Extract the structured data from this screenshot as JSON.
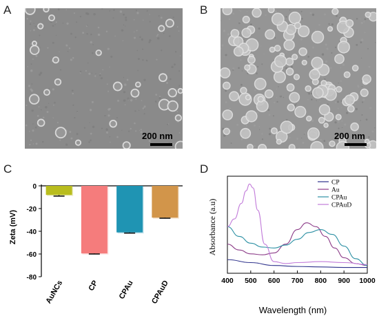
{
  "panels": {
    "A": {
      "letter": "A",
      "scale_label": "200 nm"
    },
    "B": {
      "letter": "B",
      "scale_label": "200 nm"
    },
    "C": {
      "letter": "C"
    },
    "D": {
      "letter": "D"
    }
  },
  "chart_data": [
    {
      "type": "bar",
      "panel": "C",
      "categories": [
        "AuNCs",
        "CP",
        "CPAu",
        "CPAuD"
      ],
      "values": [
        -8,
        -59.5,
        -41,
        -28
      ],
      "errors": [
        1,
        0.5,
        0.6,
        0.5
      ],
      "colors": [
        "#b9bd1e",
        "#f57c7c",
        "#1f94b3",
        "#d2954a"
      ],
      "xlabel": "",
      "ylabel": "Zeta (mV)",
      "ylim": [
        -80,
        0
      ],
      "yticks": [
        0,
        -20,
        -40,
        -60,
        -80
      ],
      "grid": false
    },
    {
      "type": "line",
      "panel": "D",
      "xlabel": "Wavelength (nm)",
      "ylabel": "Absorbance (a.u)",
      "xlim": [
        400,
        1000
      ],
      "xticks": [
        400,
        500,
        600,
        700,
        800,
        900,
        1000
      ],
      "legend": "top-right",
      "grid": false,
      "series": [
        {
          "name": "CP",
          "color": "#2b2f8a",
          "x": [
            400,
            500,
            600,
            700,
            800,
            900,
            1000
          ],
          "y": [
            0.14,
            0.11,
            0.08,
            0.07,
            0.065,
            0.06,
            0.06
          ]
        },
        {
          "name": "Au",
          "color": "#8b3a87",
          "x": [
            400,
            450,
            500,
            550,
            600,
            650,
            700,
            740,
            780,
            820,
            860,
            900,
            950,
            1000
          ],
          "y": [
            0.3,
            0.24,
            0.2,
            0.19,
            0.21,
            0.3,
            0.45,
            0.52,
            0.48,
            0.38,
            0.26,
            0.16,
            0.1,
            0.08
          ]
        },
        {
          "name": "CPAu",
          "color": "#2a8fa3",
          "x": [
            400,
            450,
            500,
            550,
            600,
            650,
            700,
            750,
            800,
            850,
            900,
            950,
            1000
          ],
          "y": [
            0.48,
            0.38,
            0.31,
            0.27,
            0.26,
            0.29,
            0.35,
            0.42,
            0.45,
            0.4,
            0.28,
            0.15,
            0.08
          ]
        },
        {
          "name": "CPAuD",
          "color": "#c17ad9",
          "x": [
            400,
            430,
            460,
            480,
            495,
            510,
            530,
            560,
            600,
            650,
            700,
            800,
            900,
            1000
          ],
          "y": [
            0.48,
            0.56,
            0.72,
            0.85,
            0.92,
            0.88,
            0.65,
            0.3,
            0.12,
            0.1,
            0.11,
            0.12,
            0.11,
            0.09
          ]
        }
      ]
    }
  ]
}
